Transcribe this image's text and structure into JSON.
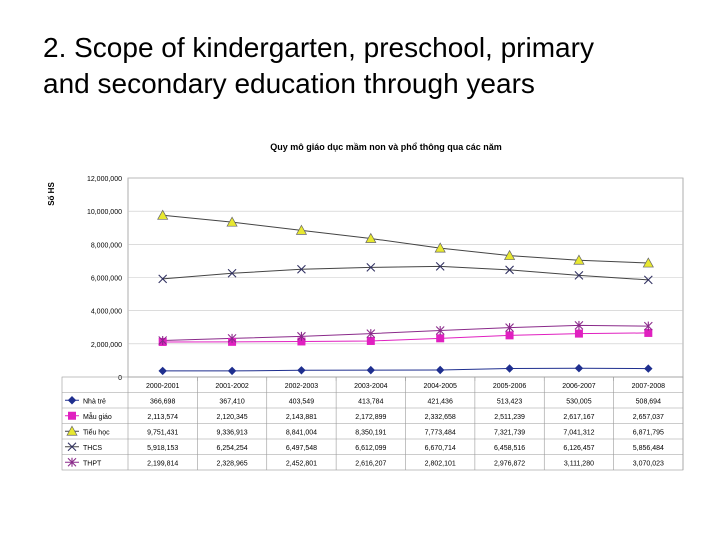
{
  "slide": {
    "title_line1": "2. Scope of kindergarten, preschool, primary",
    "title_line2": "and secondary education through years"
  },
  "chart_data": {
    "type": "line",
    "title": "Quy mô giáo dục mầm non và phổ thông qua các năm",
    "ylabel": "Số HS",
    "ylim": [
      0,
      12000000
    ],
    "yticks": [
      "12,000,000",
      "10,000,000",
      "8,000,000",
      "6,000,000",
      "4,000,000",
      "2,000,000",
      "0"
    ],
    "ytick_values": [
      12000000,
      10000000,
      8000000,
      6000000,
      4000000,
      2000000,
      0
    ],
    "grid": true,
    "legend": "data-table",
    "categories": [
      "2000-2001",
      "2001-2002",
      "2002-2003",
      "2003-2004",
      "2004-2005",
      "2005-2006",
      "2006-2007",
      "2007-2008"
    ],
    "series": [
      {
        "name": "Nhà trẻ",
        "color": "#1f2f8f",
        "marker": "diamond",
        "values": [
          366698,
          367410,
          403549,
          413784,
          421436,
          513423,
          530005,
          508694
        ],
        "labels": [
          "366,698",
          "367,410",
          "403,549",
          "413,784",
          "421,436",
          "513,423",
          "530,005",
          "508,694"
        ]
      },
      {
        "name": "Mẫu giáo",
        "color": "#e020c0",
        "marker": "square",
        "values": [
          2113574,
          2120345,
          2143881,
          2172899,
          2332658,
          2511239,
          2617167,
          2657037
        ],
        "labels": [
          "2,113,574",
          "2,120,345",
          "2,143,881",
          "2,172,899",
          "2,332,658",
          "2,511,239",
          "2,617,167",
          "2,657,037"
        ]
      },
      {
        "name": "Tiểu học",
        "color": "#e8e830",
        "marker": "triangle",
        "values": [
          9751431,
          9336913,
          8841004,
          8350191,
          7773484,
          7321739,
          7041312,
          6871795
        ],
        "labels": [
          "9,751,431",
          "9,336,913",
          "8,841,004",
          "8,350,191",
          "7,773,484",
          "7,321,739",
          "7,041,312",
          "6,871,795"
        ]
      },
      {
        "name": "THCS",
        "color": "#303060",
        "marker": "x",
        "values": [
          5918153,
          6254254,
          6497548,
          6612099,
          6670714,
          6458516,
          6126457,
          5856484
        ],
        "labels": [
          "5,918,153",
          "6,254,254",
          "6,497,548",
          "6,612,099",
          "6,670,714",
          "6,458,516",
          "6,126,457",
          "5,856,484"
        ]
      },
      {
        "name": "THPT",
        "color": "#8a2a8a",
        "marker": "star",
        "values": [
          2199814,
          2328965,
          2452801,
          2616207,
          2802101,
          2976872,
          3111280,
          3070023
        ],
        "labels": [
          "2,199,814",
          "2,328,965",
          "2,452,801",
          "2,616,207",
          "2,802,101",
          "2,976,872",
          "3,111,280",
          "3,070,023"
        ]
      }
    ]
  }
}
